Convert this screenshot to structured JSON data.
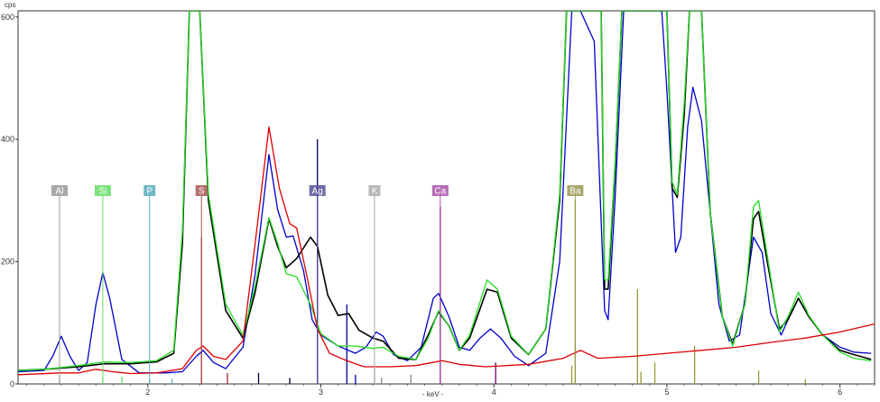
{
  "chart_data": {
    "type": "line",
    "ylabel": "cps",
    "xlabel": "- keV -",
    "xlim": [
      1.25,
      6.2
    ],
    "ylim": [
      0,
      610
    ],
    "x_ticks": [
      {
        "value": 2,
        "label": "2"
      },
      {
        "value": 3,
        "label": "3"
      },
      {
        "value": 4,
        "label": "4"
      },
      {
        "value": 5,
        "label": "5"
      },
      {
        "value": 6,
        "label": "6"
      }
    ],
    "y_ticks": [
      {
        "value": 0,
        "label": "0"
      },
      {
        "value": 200,
        "label": "200"
      },
      {
        "value": 400,
        "label": "400"
      },
      {
        "value": 600,
        "label": "600"
      }
    ],
    "series": [
      {
        "color": "#0000cc",
        "points": [
          [
            1.25,
            20
          ],
          [
            1.4,
            22
          ],
          [
            1.45,
            45
          ],
          [
            1.5,
            78
          ],
          [
            1.55,
            45
          ],
          [
            1.6,
            22
          ],
          [
            1.65,
            35
          ],
          [
            1.7,
            130
          ],
          [
            1.74,
            182
          ],
          [
            1.78,
            140
          ],
          [
            1.85,
            40
          ],
          [
            1.95,
            18
          ],
          [
            2.1,
            18
          ],
          [
            2.2,
            20
          ],
          [
            2.28,
            45
          ],
          [
            2.32,
            55
          ],
          [
            2.38,
            35
          ],
          [
            2.45,
            25
          ],
          [
            2.55,
            60
          ],
          [
            2.62,
            180
          ],
          [
            2.7,
            375
          ],
          [
            2.75,
            285
          ],
          [
            2.8,
            240
          ],
          [
            2.84,
            242
          ],
          [
            2.9,
            185
          ],
          [
            2.95,
            105
          ],
          [
            3.0,
            80
          ],
          [
            3.1,
            62
          ],
          [
            3.2,
            50
          ],
          [
            3.26,
            60
          ],
          [
            3.32,
            85
          ],
          [
            3.36,
            78
          ],
          [
            3.42,
            48
          ],
          [
            3.5,
            38
          ],
          [
            3.58,
            60
          ],
          [
            3.65,
            140
          ],
          [
            3.68,
            148
          ],
          [
            3.74,
            110
          ],
          [
            3.8,
            60
          ],
          [
            3.86,
            55
          ],
          [
            3.92,
            75
          ],
          [
            3.98,
            90
          ],
          [
            4.04,
            75
          ],
          [
            4.12,
            45
          ],
          [
            4.2,
            30
          ],
          [
            4.3,
            50
          ],
          [
            4.38,
            200
          ],
          [
            4.45,
            610
          ],
          [
            4.5,
            610
          ],
          [
            4.58,
            560
          ],
          [
            4.64,
            120
          ],
          [
            4.66,
            105
          ],
          [
            4.7,
            300
          ],
          [
            4.75,
            610
          ],
          [
            4.97,
            610
          ],
          [
            5.0,
            480
          ],
          [
            5.05,
            215
          ],
          [
            5.08,
            240
          ],
          [
            5.12,
            420
          ],
          [
            5.15,
            485
          ],
          [
            5.2,
            430
          ],
          [
            5.3,
            130
          ],
          [
            5.36,
            70
          ],
          [
            5.42,
            80
          ],
          [
            5.5,
            240
          ],
          [
            5.55,
            215
          ],
          [
            5.6,
            115
          ],
          [
            5.66,
            80
          ],
          [
            5.72,
            118
          ],
          [
            5.76,
            140
          ],
          [
            5.82,
            110
          ],
          [
            5.9,
            80
          ],
          [
            6.0,
            60
          ],
          [
            6.08,
            52
          ],
          [
            6.18,
            50
          ]
        ]
      },
      {
        "color": "#000000",
        "points": [
          [
            1.25,
            22
          ],
          [
            1.4,
            24
          ],
          [
            1.6,
            28
          ],
          [
            1.75,
            33
          ],
          [
            1.9,
            33
          ],
          [
            2.05,
            36
          ],
          [
            2.15,
            50
          ],
          [
            2.2,
            230
          ],
          [
            2.24,
            610
          ],
          [
            2.3,
            610
          ],
          [
            2.35,
            300
          ],
          [
            2.45,
            120
          ],
          [
            2.55,
            75
          ],
          [
            2.62,
            150
          ],
          [
            2.7,
            270
          ],
          [
            2.75,
            225
          ],
          [
            2.8,
            190
          ],
          [
            2.86,
            205
          ],
          [
            2.94,
            240
          ],
          [
            2.98,
            225
          ],
          [
            3.04,
            145
          ],
          [
            3.1,
            112
          ],
          [
            3.16,
            115
          ],
          [
            3.22,
            88
          ],
          [
            3.3,
            75
          ],
          [
            3.36,
            70
          ],
          [
            3.45,
            42
          ],
          [
            3.55,
            40
          ],
          [
            3.62,
            80
          ],
          [
            3.68,
            118
          ],
          [
            3.74,
            95
          ],
          [
            3.8,
            55
          ],
          [
            3.86,
            75
          ],
          [
            3.96,
            155
          ],
          [
            4.02,
            150
          ],
          [
            4.1,
            75
          ],
          [
            4.2,
            48
          ],
          [
            4.3,
            90
          ],
          [
            4.38,
            300
          ],
          [
            4.42,
            610
          ],
          [
            4.62,
            610
          ],
          [
            4.64,
            155
          ],
          [
            4.66,
            155
          ],
          [
            4.7,
            350
          ],
          [
            4.74,
            610
          ],
          [
            5.0,
            610
          ],
          [
            5.03,
            320
          ],
          [
            5.06,
            305
          ],
          [
            5.1,
            440
          ],
          [
            5.13,
            610
          ],
          [
            5.2,
            610
          ],
          [
            5.25,
            280
          ],
          [
            5.32,
            110
          ],
          [
            5.38,
            65
          ],
          [
            5.45,
            130
          ],
          [
            5.5,
            270
          ],
          [
            5.53,
            282
          ],
          [
            5.58,
            200
          ],
          [
            5.65,
            90
          ],
          [
            5.7,
            105
          ],
          [
            5.76,
            140
          ],
          [
            5.82,
            110
          ],
          [
            5.9,
            80
          ],
          [
            6.0,
            55
          ],
          [
            6.08,
            48
          ],
          [
            6.18,
            40
          ]
        ]
      },
      {
        "color": "#22dd22",
        "points": [
          [
            1.25,
            22
          ],
          [
            1.4,
            24
          ],
          [
            1.6,
            30
          ],
          [
            1.75,
            36
          ],
          [
            1.9,
            35
          ],
          [
            2.05,
            38
          ],
          [
            2.15,
            55
          ],
          [
            2.2,
            250
          ],
          [
            2.24,
            610
          ],
          [
            2.3,
            610
          ],
          [
            2.35,
            310
          ],
          [
            2.45,
            130
          ],
          [
            2.55,
            80
          ],
          [
            2.62,
            160
          ],
          [
            2.7,
            272
          ],
          [
            2.75,
            230
          ],
          [
            2.8,
            180
          ],
          [
            2.86,
            175
          ],
          [
            2.94,
            130
          ],
          [
            3.0,
            82
          ],
          [
            3.1,
            62
          ],
          [
            3.2,
            62
          ],
          [
            3.3,
            58
          ],
          [
            3.36,
            60
          ],
          [
            3.45,
            45
          ],
          [
            3.55,
            40
          ],
          [
            3.62,
            75
          ],
          [
            3.68,
            120
          ],
          [
            3.74,
            95
          ],
          [
            3.8,
            55
          ],
          [
            3.86,
            80
          ],
          [
            3.96,
            170
          ],
          [
            4.02,
            155
          ],
          [
            4.1,
            78
          ],
          [
            4.2,
            48
          ],
          [
            4.3,
            90
          ],
          [
            4.38,
            310
          ],
          [
            4.42,
            610
          ],
          [
            4.62,
            610
          ],
          [
            4.64,
            170
          ],
          [
            4.66,
            170
          ],
          [
            4.7,
            360
          ],
          [
            4.74,
            610
          ],
          [
            5.0,
            610
          ],
          [
            5.03,
            330
          ],
          [
            5.06,
            310
          ],
          [
            5.1,
            460
          ],
          [
            5.13,
            610
          ],
          [
            5.2,
            610
          ],
          [
            5.25,
            280
          ],
          [
            5.32,
            110
          ],
          [
            5.38,
            62
          ],
          [
            5.45,
            130
          ],
          [
            5.5,
            290
          ],
          [
            5.53,
            300
          ],
          [
            5.58,
            210
          ],
          [
            5.65,
            85
          ],
          [
            5.7,
            110
          ],
          [
            5.76,
            150
          ],
          [
            5.82,
            112
          ],
          [
            5.9,
            80
          ],
          [
            6.0,
            52
          ],
          [
            6.08,
            42
          ],
          [
            6.18,
            38
          ]
        ]
      },
      {
        "color": "#dd0000",
        "points": [
          [
            1.25,
            15
          ],
          [
            1.5,
            18
          ],
          [
            1.6,
            18
          ],
          [
            1.7,
            24
          ],
          [
            1.8,
            20
          ],
          [
            1.9,
            17
          ],
          [
            2.05,
            18
          ],
          [
            2.2,
            25
          ],
          [
            2.28,
            55
          ],
          [
            2.32,
            62
          ],
          [
            2.38,
            45
          ],
          [
            2.45,
            40
          ],
          [
            2.55,
            70
          ],
          [
            2.62,
            230
          ],
          [
            2.7,
            420
          ],
          [
            2.76,
            320
          ],
          [
            2.82,
            262
          ],
          [
            2.86,
            255
          ],
          [
            2.92,
            175
          ],
          [
            2.98,
            90
          ],
          [
            3.05,
            50
          ],
          [
            3.15,
            38
          ],
          [
            3.25,
            28
          ],
          [
            3.4,
            28
          ],
          [
            3.55,
            30
          ],
          [
            3.7,
            38
          ],
          [
            3.8,
            32
          ],
          [
            3.95,
            28
          ],
          [
            4.2,
            32
          ],
          [
            4.4,
            42
          ],
          [
            4.5,
            55
          ],
          [
            4.6,
            42
          ],
          [
            4.8,
            45
          ],
          [
            5.0,
            50
          ],
          [
            5.2,
            55
          ],
          [
            5.4,
            60
          ],
          [
            5.6,
            68
          ],
          [
            5.8,
            75
          ],
          [
            6.0,
            85
          ],
          [
            6.2,
            98
          ]
        ]
      }
    ],
    "element_markers": [
      {
        "label": "Al",
        "energy": 1.49,
        "color": "#999999"
      },
      {
        "label": "Si",
        "energy": 1.74,
        "color": "#66dd66"
      },
      {
        "label": "P",
        "energy": 2.01,
        "color": "#5aaabb"
      },
      {
        "label": "S",
        "energy": 2.31,
        "color": "#aa5555"
      },
      {
        "label": "Ag",
        "energy": 2.98,
        "color": "#555599"
      },
      {
        "label": "K",
        "energy": 3.31,
        "color": "#aaaaaa"
      },
      {
        "label": "Ca",
        "energy": 3.69,
        "color": "#aa55aa"
      },
      {
        "label": "Ba",
        "energy": 4.47,
        "color": "#999955"
      }
    ],
    "reference_lines": [
      {
        "energy": 1.49,
        "height": 12,
        "color": "#999999"
      },
      {
        "energy": 1.74,
        "height": 10,
        "color": "#66dd66"
      },
      {
        "energy": 1.85,
        "height": 12,
        "color": "#66dd66"
      },
      {
        "energy": 2.01,
        "height": 8,
        "color": "#5aaabb"
      },
      {
        "energy": 2.14,
        "height": 8,
        "color": "#5aaabb"
      },
      {
        "energy": 2.31,
        "height": 240,
        "color": "#aa2233"
      },
      {
        "energy": 2.46,
        "height": 18,
        "color": "#aa2233"
      },
      {
        "energy": 2.64,
        "height": 18,
        "color": "#000033"
      },
      {
        "energy": 2.82,
        "height": 10,
        "color": "#000033"
      },
      {
        "energy": 2.98,
        "height": 400,
        "color": "#000066"
      },
      {
        "energy": 3.15,
        "height": 130,
        "color": "#0000aa"
      },
      {
        "energy": 3.2,
        "height": 15,
        "color": "#0000aa"
      },
      {
        "energy": 3.31,
        "height": 25,
        "color": "#888888"
      },
      {
        "energy": 3.35,
        "height": 10,
        "color": "#888888"
      },
      {
        "energy": 3.52,
        "height": 15,
        "color": "#888888"
      },
      {
        "energy": 3.69,
        "height": 290,
        "color": "#660066"
      },
      {
        "energy": 4.01,
        "height": 35,
        "color": "#660066"
      },
      {
        "energy": 4.45,
        "height": 30,
        "color": "#999933"
      },
      {
        "energy": 4.47,
        "height": 300,
        "color": "#999933"
      },
      {
        "energy": 4.83,
        "height": 155,
        "color": "#999933"
      },
      {
        "energy": 4.85,
        "height": 20,
        "color": "#999933"
      },
      {
        "energy": 4.93,
        "height": 35,
        "color": "#999933"
      },
      {
        "energy": 5.16,
        "height": 62,
        "color": "#999933"
      },
      {
        "energy": 5.53,
        "height": 22,
        "color": "#999933"
      },
      {
        "energy": 5.8,
        "height": 8,
        "color": "#999933"
      }
    ]
  }
}
